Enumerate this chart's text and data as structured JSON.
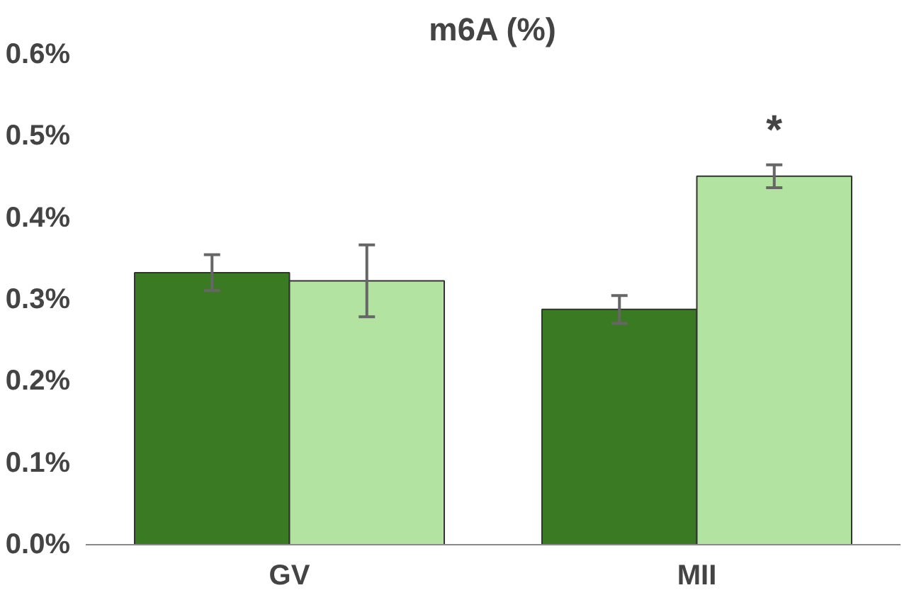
{
  "chart_data": {
    "type": "bar",
    "title": "m6A (%)",
    "categories": [
      "GV",
      "MII"
    ],
    "series": [
      {
        "color": "#3a7a22",
        "values": [
          0.333,
          0.288
        ],
        "errors": [
          0.022,
          0.017
        ]
      },
      {
        "color": "#b3e3a0",
        "values": [
          0.323,
          0.451
        ],
        "errors": [
          0.044,
          0.014
        ]
      }
    ],
    "ylim": [
      0,
      0.6
    ],
    "yticks": [
      {
        "value": 0,
        "label": "0.0%"
      },
      {
        "value": 0.1,
        "label": "0.1%"
      },
      {
        "value": 0.2,
        "label": "0.2%"
      },
      {
        "value": 0.3,
        "label": "0.3%"
      },
      {
        "value": 0.4,
        "label": "0.4%"
      },
      {
        "value": 0.5,
        "label": "0.5%"
      },
      {
        "value": 0.6,
        "label": "0.6%"
      }
    ],
    "annotations": [
      "*"
    ],
    "grid": false
  }
}
